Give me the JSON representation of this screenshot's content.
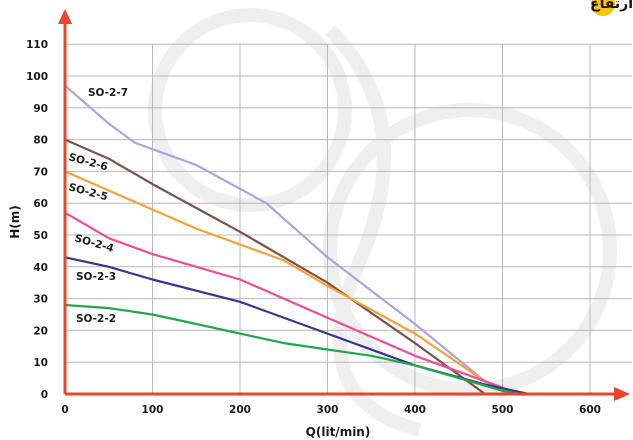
{
  "header": {
    "title": "منحنی نیرو، آبدهی، ارتفاع",
    "accent": "#f7c400"
  },
  "chart_data": {
    "type": "line",
    "xlabel": "Q(lit/min)",
    "ylabel": "H(m)",
    "xlim": [
      0,
      600
    ],
    "ylim": [
      0,
      110
    ],
    "xticks": [
      "0",
      "100",
      "200",
      "300",
      "400",
      "500",
      "600"
    ],
    "yticks": [
      "0",
      "10",
      "20",
      "30",
      "40",
      "50",
      "60",
      "70",
      "80",
      "90",
      "100",
      "110"
    ],
    "grid": true,
    "axis_color": "#e8452c",
    "grid_color": "#b8b8b8",
    "series": [
      {
        "name": "SO-2-7",
        "color": "#a9a6dd",
        "x": [
          0,
          50,
          80,
          150,
          230,
          300,
          400,
          480,
          500
        ],
        "y": [
          97,
          85,
          79,
          72,
          60,
          43,
          22,
          4,
          2
        ]
      },
      {
        "name": "SO-2-6",
        "color": "#7b5245",
        "x": [
          0,
          50,
          100,
          200,
          300,
          400,
          480,
          490
        ],
        "y": [
          80,
          74,
          66,
          51,
          35,
          16,
          0,
          0
        ]
      },
      {
        "name": "SO-2-5",
        "color": "#f7a035",
        "x": [
          0,
          50,
          100,
          150,
          200,
          250,
          300,
          400,
          480,
          510
        ],
        "y": [
          70,
          64,
          58,
          52,
          47,
          42,
          34,
          19,
          4,
          1
        ]
      },
      {
        "name": "SO-2-4",
        "color": "#ef4c96",
        "x": [
          0,
          50,
          100,
          150,
          200,
          300,
          400,
          450,
          500
        ],
        "y": [
          57,
          49,
          44,
          40,
          36,
          24,
          12,
          7,
          2
        ]
      },
      {
        "name": "SO-2-3",
        "color": "#33388f",
        "x": [
          0,
          50,
          100,
          200,
          300,
          400,
          480,
          530
        ],
        "y": [
          43,
          40,
          36,
          29,
          19,
          9,
          3,
          0
        ]
      },
      {
        "name": "SO-2-2",
        "color": "#22a84a",
        "x": [
          0,
          50,
          100,
          150,
          200,
          250,
          300,
          350,
          400,
          450,
          500,
          520
        ],
        "y": [
          28,
          27,
          25,
          22,
          19,
          16,
          14,
          12,
          9,
          5,
          1,
          0
        ]
      }
    ]
  }
}
